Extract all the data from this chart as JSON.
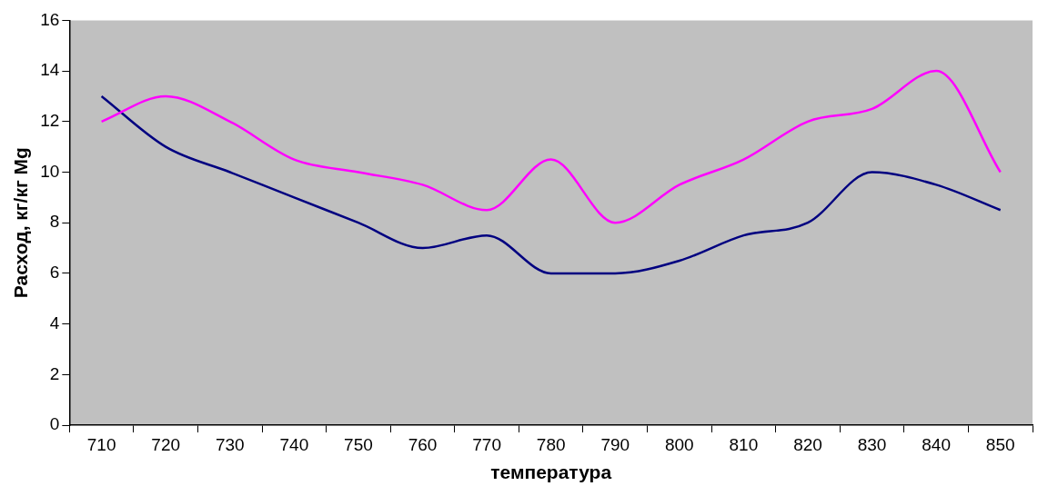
{
  "chart_data": {
    "type": "line",
    "xlabel": "температура",
    "ylabel": "Расход, кг/кг Mg",
    "categories": [
      "710",
      "720",
      "730",
      "740",
      "750",
      "760",
      "770",
      "780",
      "790",
      "800",
      "810",
      "820",
      "830",
      "840",
      "850"
    ],
    "series": [
      {
        "color": "#ff00ff",
        "values": [
          12,
          13,
          12,
          10.5,
          10,
          9.5,
          8.5,
          10.5,
          8,
          9.5,
          10.5,
          12,
          12.5,
          14,
          10
        ]
      },
      {
        "color": "#000080",
        "values": [
          13,
          11,
          10,
          9,
          8,
          7,
          7.5,
          6,
          6,
          6.5,
          7.5,
          8,
          10,
          9.5,
          8.5
        ]
      }
    ],
    "ylim": [
      0,
      16
    ],
    "yticks": [
      0,
      2,
      4,
      6,
      8,
      10,
      12,
      14,
      16
    ],
    "grid": false,
    "legend": false,
    "marker": "none",
    "line_style": "solid"
  }
}
